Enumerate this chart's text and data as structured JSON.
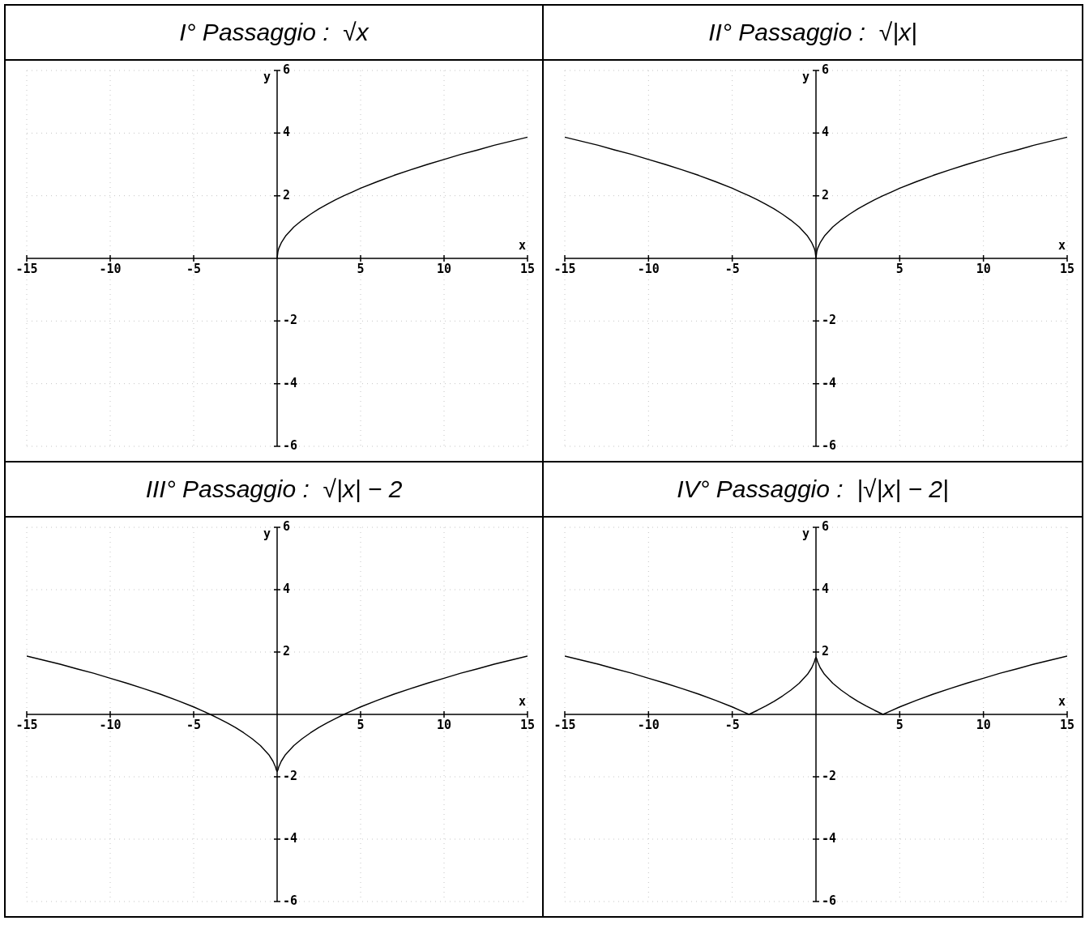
{
  "chart_data": [
    {
      "type": "line",
      "title": "I° Passaggio :  √x",
      "xlabel": "x",
      "ylabel": "y",
      "color": "#000000",
      "marker": "none",
      "grid": true,
      "xlim": [
        -15,
        15
      ],
      "ylim": [
        -6,
        6
      ],
      "xticks": [
        -15,
        -10,
        -5,
        5,
        10,
        15
      ],
      "yticks": [
        -6,
        -4,
        -2,
        2,
        4,
        6
      ],
      "x": [
        0,
        0.05,
        0.1,
        0.25,
        0.5,
        1,
        1.5,
        2,
        2.5,
        3,
        3.5,
        4,
        4.5,
        5,
        6,
        7,
        8,
        9,
        10,
        11,
        12,
        13,
        14,
        15
      ],
      "values": [
        0,
        0.22,
        0.32,
        0.5,
        0.71,
        1,
        1.22,
        1.41,
        1.58,
        1.73,
        1.87,
        2,
        2.12,
        2.24,
        2.45,
        2.65,
        2.83,
        3,
        3.16,
        3.32,
        3.46,
        3.61,
        3.74,
        3.87
      ]
    },
    {
      "type": "line",
      "title": "II° Passaggio :  √|x|",
      "xlabel": "x",
      "ylabel": "y",
      "color": "#000000",
      "marker": "none",
      "grid": true,
      "xlim": [
        -15,
        15
      ],
      "ylim": [
        -6,
        6
      ],
      "xticks": [
        -15,
        -10,
        -5,
        5,
        10,
        15
      ],
      "yticks": [
        -6,
        -4,
        -2,
        2,
        4,
        6
      ],
      "x": [
        -15,
        -14,
        -13,
        -12,
        -11,
        -10,
        -9,
        -8,
        -7,
        -6,
        -5,
        -4.5,
        -4,
        -3.5,
        -3,
        -2.5,
        -2,
        -1.5,
        -1,
        -0.5,
        -0.25,
        -0.1,
        -0.05,
        0,
        0.05,
        0.1,
        0.25,
        0.5,
        1,
        1.5,
        2,
        2.5,
        3,
        3.5,
        4,
        4.5,
        5,
        6,
        7,
        8,
        9,
        10,
        11,
        12,
        13,
        14,
        15
      ],
      "values": [
        3.87,
        3.74,
        3.61,
        3.46,
        3.32,
        3.16,
        3,
        2.83,
        2.65,
        2.45,
        2.24,
        2.12,
        2,
        1.87,
        1.73,
        1.58,
        1.41,
        1.22,
        1,
        0.71,
        0.5,
        0.32,
        0.22,
        0,
        0.22,
        0.32,
        0.5,
        0.71,
        1,
        1.22,
        1.41,
        1.58,
        1.73,
        1.87,
        2,
        2.12,
        2.24,
        2.45,
        2.65,
        2.83,
        3,
        3.16,
        3.32,
        3.46,
        3.61,
        3.74,
        3.87
      ]
    },
    {
      "type": "line",
      "title": "III° Passaggio :  √|x| − 2",
      "xlabel": "x",
      "ylabel": "y",
      "color": "#000000",
      "marker": "none",
      "grid": true,
      "xlim": [
        -15,
        15
      ],
      "ylim": [
        -6,
        6
      ],
      "xticks": [
        -15,
        -10,
        -5,
        5,
        10,
        15
      ],
      "yticks": [
        -6,
        -4,
        -2,
        2,
        4,
        6
      ],
      "x": [
        -15,
        -14,
        -13,
        -12,
        -11,
        -10,
        -9,
        -8,
        -7,
        -6,
        -5,
        -4.5,
        -4,
        -3.5,
        -3,
        -2.5,
        -2,
        -1.5,
        -1,
        -0.5,
        -0.25,
        -0.1,
        -0.05,
        0,
        0.05,
        0.1,
        0.25,
        0.5,
        1,
        1.5,
        2,
        2.5,
        3,
        3.5,
        4,
        4.5,
        5,
        6,
        7,
        8,
        9,
        10,
        11,
        12,
        13,
        14,
        15
      ],
      "values": [
        1.87,
        1.74,
        1.61,
        1.46,
        1.32,
        1.16,
        1,
        0.83,
        0.65,
        0.45,
        0.24,
        0.12,
        0,
        -0.13,
        -0.27,
        -0.42,
        -0.59,
        -0.78,
        -1,
        -1.29,
        -1.5,
        -1.68,
        -1.78,
        -1.83,
        -1.78,
        -1.68,
        -1.5,
        -1.29,
        -1,
        -0.78,
        -0.59,
        -0.42,
        -0.27,
        -0.13,
        0,
        0.12,
        0.24,
        0.45,
        0.65,
        0.83,
        1,
        1.16,
        1.32,
        1.46,
        1.61,
        1.74,
        1.87
      ]
    },
    {
      "type": "line",
      "title": "IV° Passaggio :  |√|x| − 2|",
      "xlabel": "x",
      "ylabel": "y",
      "color": "#000000",
      "marker": "none",
      "grid": true,
      "xlim": [
        -15,
        15
      ],
      "ylim": [
        -6,
        6
      ],
      "xticks": [
        -15,
        -10,
        -5,
        5,
        10,
        15
      ],
      "yticks": [
        -6,
        -4,
        -2,
        2,
        4,
        6
      ],
      "x": [
        -15,
        -14,
        -13,
        -12,
        -11,
        -10,
        -9,
        -8,
        -7,
        -6,
        -5,
        -4.5,
        -4,
        -3.5,
        -3,
        -2.5,
        -2,
        -1.5,
        -1,
        -0.5,
        -0.25,
        -0.1,
        -0.05,
        0,
        0.05,
        0.1,
        0.25,
        0.5,
        1,
        1.5,
        2,
        2.5,
        3,
        3.5,
        4,
        4.5,
        5,
        6,
        7,
        8,
        9,
        10,
        11,
        12,
        13,
        14,
        15
      ],
      "values": [
        1.87,
        1.74,
        1.61,
        1.46,
        1.32,
        1.16,
        1,
        0.83,
        0.65,
        0.45,
        0.24,
        0.12,
        0,
        0.13,
        0.27,
        0.42,
        0.59,
        0.78,
        1,
        1.29,
        1.5,
        1.68,
        1.78,
        1.83,
        1.78,
        1.68,
        1.5,
        1.29,
        1,
        0.78,
        0.59,
        0.42,
        0.27,
        0.13,
        0,
        0.12,
        0.24,
        0.45,
        0.65,
        0.83,
        1,
        1.16,
        1.32,
        1.46,
        1.61,
        1.74,
        1.87
      ]
    }
  ]
}
